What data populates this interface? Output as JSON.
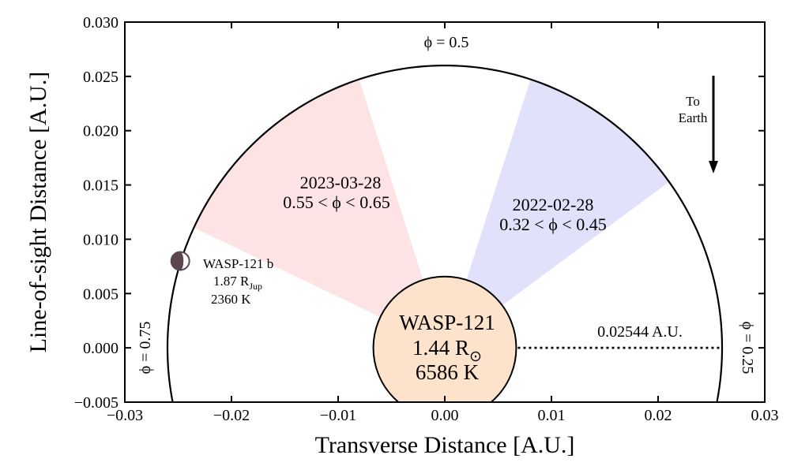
{
  "chart_data": {
    "type": "scatter",
    "title": "",
    "xlabel": "Transverse Distance [A.U.]",
    "ylabel": "Line-of-sight Distance [A.U.]",
    "xlim": [
      -0.03,
      0.03
    ],
    "ylim": [
      -0.005,
      0.03
    ],
    "grid": false,
    "x_ticks": [
      -0.03,
      -0.02,
      -0.01,
      0.0,
      0.01,
      0.02,
      0.03
    ],
    "x_tick_labels": [
      "−0.03",
      "−0.02",
      "−0.01",
      "0.00",
      "0.01",
      "0.02",
      "0.03"
    ],
    "y_ticks": [
      -0.005,
      0.0,
      0.005,
      0.01,
      0.015,
      0.02,
      0.025,
      0.03
    ],
    "y_tick_labels": [
      "−0.005",
      "0.000",
      "0.005",
      "0.010",
      "0.015",
      "0.020",
      "0.025",
      "0.030"
    ],
    "orbit_radius": 0.026,
    "star": {
      "name": "WASP-121",
      "radius_label": "1.44 R",
      "radius_symbol": "⊙",
      "temperature": "6586 K",
      "radius_au": 0.0067,
      "color": "#fde3cc"
    },
    "planet": {
      "name": "WASP-121 b",
      "radius_label": "1.87 R",
      "radius_subscript": "Jup",
      "temperature": "2360 K",
      "x": -0.0248,
      "y": 0.008,
      "radius_au": 0.00085,
      "color": "#5a4550"
    },
    "phase_wedges": [
      {
        "date": "2023-03-28",
        "phase_range": "0.55 < ϕ < 0.65",
        "phase_start": 0.55,
        "phase_end": 0.65,
        "color": "#e1e1fb",
        "label_color": "#1a1aee"
      },
      {
        "date": "2022-02-28",
        "phase_range": "0.32 < ϕ < 0.45",
        "phase_start": 0.32,
        "phase_end": 0.45,
        "color": "#fde3e3",
        "label_color": "#ee1111"
      }
    ],
    "phase_labels": {
      "top": "ϕ = 0.5",
      "left": "ϕ = 0.75",
      "right": "ϕ = 0.25"
    },
    "semi_major_axis_label": "0.02544 A.U.",
    "earth_arrow_label": [
      "To",
      "Earth"
    ]
  }
}
